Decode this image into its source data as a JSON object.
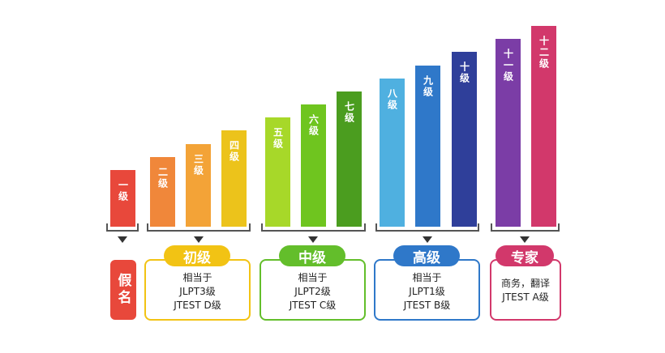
{
  "chart_data": {
    "type": "bar",
    "categories": [
      "一级",
      "二级",
      "三级",
      "四级",
      "五级",
      "六级",
      "七级",
      "八级",
      "九级",
      "十级",
      "十一级",
      "十二级"
    ],
    "values": [
      1,
      2,
      3,
      4,
      5,
      6,
      7,
      8,
      9,
      10,
      11,
      12
    ]
  },
  "colors": {
    "bars": [
      "#e8483b",
      "#f0873a",
      "#f3a337",
      "#ecc31b",
      "#a7d829",
      "#6fc51f",
      "#4b9d1f",
      "#4fb0e0",
      "#2f78c9",
      "#2f3f9a",
      "#7b3da6",
      "#d2386b"
    ],
    "beginner": "#f2c314",
    "intermediate": "#63be2b",
    "advanced": "#2f78c9",
    "expert": "#d2386b",
    "kana": "#e8483b"
  },
  "groups": {
    "kana": {
      "label": "假名"
    },
    "beginner": {
      "title": "初级",
      "line1": "相当于",
      "line2": "JLPT3级",
      "line3": "JTEST D级"
    },
    "intermediate": {
      "title": "中级",
      "line1": "相当于",
      "line2": "JLPT2级",
      "line3": "JTEST C级"
    },
    "advanced": {
      "title": "高级",
      "line1": "相当于",
      "line2": "JLPT1级",
      "line3": "JTEST B级"
    },
    "expert": {
      "title": "专家",
      "line1": "商务，翻译",
      "line2": "JTEST A级"
    }
  },
  "icons": {
    "arrow": "triangle-down-icon"
  }
}
